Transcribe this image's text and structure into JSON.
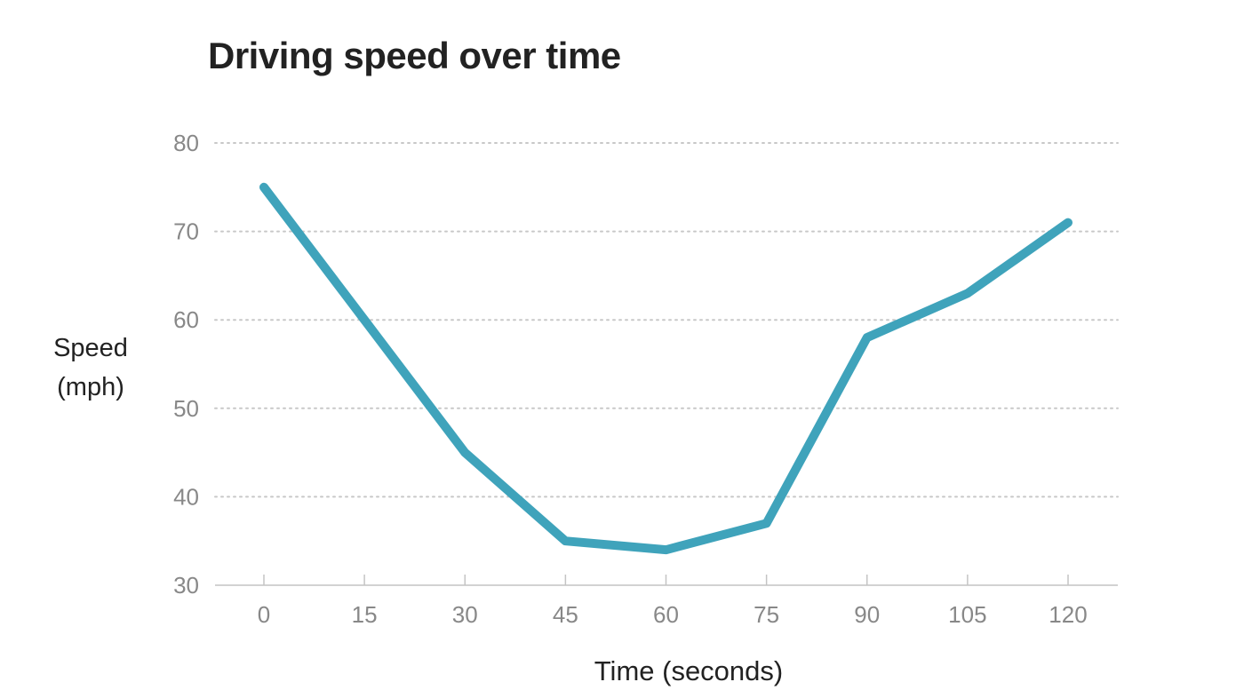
{
  "chart_data": {
    "type": "line",
    "title": "Driving speed over time",
    "xlabel": "Time (seconds)",
    "ylabel_lines": [
      "Speed",
      "(mph)"
    ],
    "x": [
      0,
      15,
      30,
      45,
      60,
      75,
      90,
      105,
      120
    ],
    "series": [
      {
        "values": [
          75,
          60,
          45,
          35,
          34,
          37,
          58,
          63,
          71
        ],
        "color": "#3fa3bb"
      }
    ],
    "xticks": [
      "0",
      "15",
      "30",
      "45",
      "60",
      "75",
      "90",
      "105",
      "120"
    ],
    "yticks": [
      "30",
      "40",
      "50",
      "60",
      "70",
      "80"
    ],
    "xlim": [
      0,
      120
    ],
    "ylim": [
      30,
      80
    ],
    "grid": "horizontal-dotted",
    "legend": "none"
  }
}
